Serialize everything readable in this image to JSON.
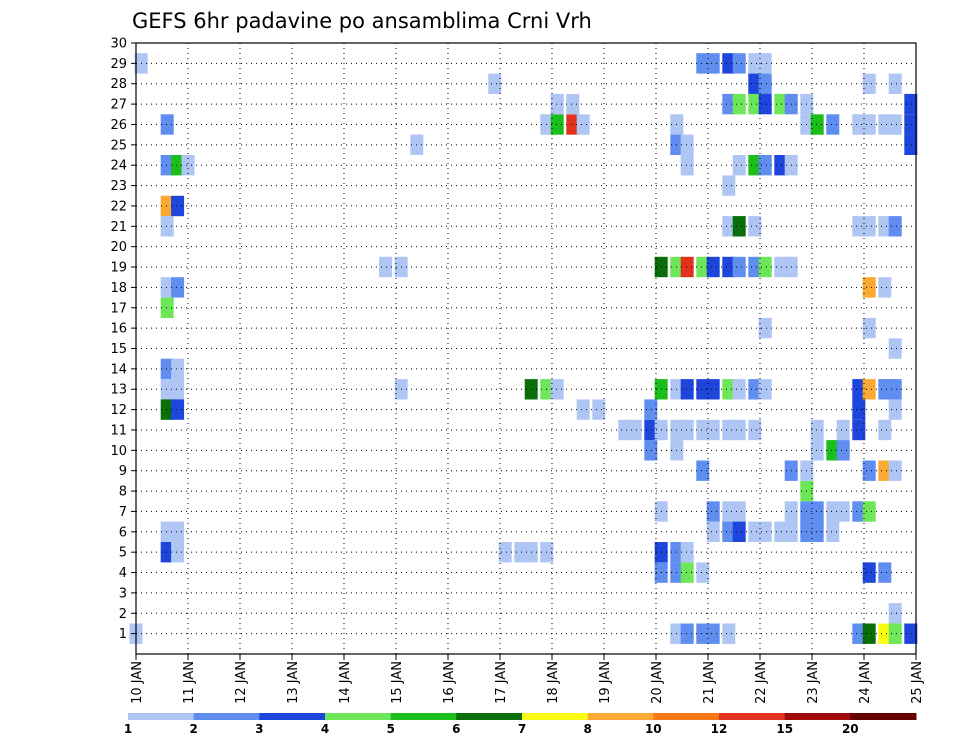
{
  "chart_data": {
    "type": "heatmap",
    "title": "GEFS 6hr padavine po ansamblima Crni Vrh",
    "xlabel": "",
    "ylabel": "",
    "x_range": [
      "10 JAN",
      "25 JAN"
    ],
    "x_ticks": [
      "10 JAN",
      "11 JAN",
      "12 JAN",
      "13 JAN",
      "14 JAN",
      "15 JAN",
      "16 JAN",
      "17 JAN",
      "18 JAN",
      "19 JAN",
      "20 JAN",
      "21 JAN",
      "22 JAN",
      "23 JAN",
      "24 JAN",
      "25 JAN"
    ],
    "y_ticks": [
      "1",
      "2",
      "3",
      "4",
      "5",
      "6",
      "7",
      "8",
      "9",
      "10",
      "11",
      "12",
      "13",
      "14",
      "15",
      "16",
      "17",
      "18",
      "19",
      "20",
      "21",
      "22",
      "23",
      "24",
      "25",
      "26",
      "27",
      "28",
      "29",
      "30"
    ],
    "ylim": [
      0,
      30
    ],
    "grid": true,
    "legend_position": "bottom",
    "legend_levels": [
      "1",
      "2",
      "3",
      "4",
      "5",
      "6",
      "7",
      "8",
      "10",
      "12",
      "15",
      "20"
    ],
    "legend_colors": [
      "#afc6f5",
      "#5f8ef0",
      "#1e46dc",
      "#6ee65a",
      "#1cbe1c",
      "#0a6e0a",
      "#fafa14",
      "#faaa32",
      "#fa7814",
      "#e1321e",
      "#a00a0a",
      "#640000"
    ],
    "cells": [
      [
        10.1,
        29,
        0
      ],
      [
        10.0,
        1,
        0
      ],
      [
        24.9,
        1,
        2
      ],
      [
        24.9,
        25,
        2
      ],
      [
        24.9,
        26,
        2
      ],
      [
        24.9,
        27,
        2
      ],
      [
        10.6,
        26,
        1
      ],
      [
        10.6,
        24,
        1
      ],
      [
        10.8,
        24,
        4
      ],
      [
        11.0,
        24,
        0
      ],
      [
        10.6,
        22,
        7
      ],
      [
        10.8,
        22,
        2
      ],
      [
        10.6,
        21,
        0
      ],
      [
        10.6,
        18,
        0
      ],
      [
        10.8,
        18,
        1
      ],
      [
        10.6,
        17,
        3
      ],
      [
        10.6,
        14,
        1
      ],
      [
        10.8,
        14,
        0
      ],
      [
        10.6,
        13,
        0
      ],
      [
        10.8,
        13,
        0
      ],
      [
        10.6,
        12,
        5
      ],
      [
        10.8,
        12,
        2
      ],
      [
        10.6,
        6,
        0
      ],
      [
        10.8,
        6,
        0
      ],
      [
        10.6,
        5,
        2
      ],
      [
        10.8,
        5,
        0
      ],
      [
        14.8,
        19,
        0
      ],
      [
        15.1,
        19,
        0
      ],
      [
        15.4,
        25,
        0
      ],
      [
        15.1,
        13,
        0
      ],
      [
        16.9,
        28,
        0
      ],
      [
        17.1,
        5,
        0
      ],
      [
        17.4,
        5,
        0
      ],
      [
        17.6,
        5,
        0
      ],
      [
        17.9,
        5,
        0
      ],
      [
        17.6,
        13,
        5
      ],
      [
        17.9,
        13,
        3
      ],
      [
        18.1,
        13,
        0
      ],
      [
        17.9,
        26,
        0
      ],
      [
        18.1,
        26,
        4
      ],
      [
        18.4,
        26,
        9
      ],
      [
        18.6,
        26,
        0
      ],
      [
        18.1,
        27,
        0
      ],
      [
        18.4,
        27,
        0
      ],
      [
        18.6,
        12,
        0
      ],
      [
        18.9,
        12,
        0
      ],
      [
        19.4,
        11,
        0
      ],
      [
        19.6,
        11,
        0
      ],
      [
        19.9,
        11,
        2
      ],
      [
        19.9,
        10,
        1
      ],
      [
        19.9,
        12,
        1
      ],
      [
        20.1,
        19,
        5
      ],
      [
        20.4,
        19,
        3
      ],
      [
        20.6,
        19,
        9
      ],
      [
        20.9,
        19,
        3
      ],
      [
        21.1,
        19,
        2
      ],
      [
        21.4,
        19,
        2
      ],
      [
        21.6,
        19,
        1
      ],
      [
        21.9,
        19,
        1
      ],
      [
        22.1,
        19,
        3
      ],
      [
        22.4,
        19,
        0
      ],
      [
        22.6,
        19,
        0
      ],
      [
        20.1,
        13,
        4
      ],
      [
        20.4,
        13,
        0
      ],
      [
        20.6,
        13,
        2
      ],
      [
        20.9,
        13,
        2
      ],
      [
        21.1,
        13,
        2
      ],
      [
        21.4,
        13,
        3
      ],
      [
        21.6,
        13,
        0
      ],
      [
        21.9,
        13,
        1
      ],
      [
        22.1,
        13,
        0
      ],
      [
        20.1,
        11,
        0
      ],
      [
        20.4,
        11,
        0
      ],
      [
        20.6,
        11,
        0
      ],
      [
        20.9,
        11,
        0
      ],
      [
        21.1,
        11,
        0
      ],
      [
        21.4,
        11,
        0
      ],
      [
        21.6,
        11,
        0
      ],
      [
        21.9,
        11,
        0
      ],
      [
        20.1,
        5,
        2
      ],
      [
        20.4,
        5,
        1
      ],
      [
        20.6,
        5,
        0
      ],
      [
        20.1,
        4,
        1
      ],
      [
        20.4,
        4,
        1
      ],
      [
        20.6,
        4,
        3
      ],
      [
        20.9,
        4,
        0
      ],
      [
        20.1,
        7,
        0
      ],
      [
        20.4,
        10,
        0
      ],
      [
        20.4,
        26,
        0
      ],
      [
        20.4,
        25,
        1
      ],
      [
        20.6,
        25,
        0
      ],
      [
        20.6,
        24,
        0
      ],
      [
        20.4,
        1,
        0
      ],
      [
        20.6,
        1,
        1
      ],
      [
        20.9,
        1,
        1
      ],
      [
        21.1,
        1,
        1
      ],
      [
        21.4,
        1,
        0
      ],
      [
        20.9,
        9,
        1
      ],
      [
        20.9,
        29,
        1
      ],
      [
        21.1,
        29,
        1
      ],
      [
        21.4,
        29,
        2
      ],
      [
        21.6,
        29,
        1
      ],
      [
        21.9,
        29,
        0
      ],
      [
        22.1,
        29,
        0
      ],
      [
        21.9,
        28,
        2
      ],
      [
        22.1,
        28,
        1
      ],
      [
        21.4,
        27,
        1
      ],
      [
        21.6,
        27,
        3
      ],
      [
        21.9,
        27,
        3
      ],
      [
        22.1,
        27,
        2
      ],
      [
        22.4,
        27,
        3
      ],
      [
        22.6,
        27,
        1
      ],
      [
        22.9,
        27,
        0
      ],
      [
        21.6,
        24,
        0
      ],
      [
        21.9,
        24,
        4
      ],
      [
        22.1,
        24,
        1
      ],
      [
        22.4,
        24,
        2
      ],
      [
        22.6,
        24,
        0
      ],
      [
        21.4,
        23,
        0
      ],
      [
        21.4,
        21,
        0
      ],
      [
        21.6,
        21,
        5
      ],
      [
        21.9,
        21,
        0
      ],
      [
        22.1,
        16,
        0
      ],
      [
        21.1,
        7,
        1
      ],
      [
        21.4,
        7,
        0
      ],
      [
        21.6,
        7,
        0
      ],
      [
        21.1,
        6,
        0
      ],
      [
        21.4,
        6,
        1
      ],
      [
        21.6,
        6,
        2
      ],
      [
        21.9,
        6,
        0
      ],
      [
        22.1,
        6,
        0
      ],
      [
        22.4,
        6,
        0
      ],
      [
        22.6,
        6,
        0
      ],
      [
        22.9,
        6,
        1
      ],
      [
        23.1,
        6,
        1
      ],
      [
        23.4,
        6,
        0
      ],
      [
        22.6,
        7,
        0
      ],
      [
        22.9,
        7,
        1
      ],
      [
        23.1,
        7,
        1
      ],
      [
        23.4,
        7,
        0
      ],
      [
        23.6,
        7,
        0
      ],
      [
        23.9,
        7,
        1
      ],
      [
        24.1,
        7,
        3
      ],
      [
        22.9,
        8,
        3
      ],
      [
        22.6,
        9,
        1
      ],
      [
        22.9,
        9,
        0
      ],
      [
        22.9,
        26,
        0
      ],
      [
        23.1,
        26,
        4
      ],
      [
        23.4,
        26,
        1
      ],
      [
        23.9,
        26,
        0
      ],
      [
        24.1,
        26,
        0
      ],
      [
        24.4,
        26,
        0
      ],
      [
        24.6,
        26,
        0
      ],
      [
        23.1,
        11,
        0
      ],
      [
        23.6,
        11,
        0
      ],
      [
        23.9,
        11,
        2
      ],
      [
        23.1,
        10,
        0
      ],
      [
        23.4,
        10,
        4
      ],
      [
        23.6,
        10,
        1
      ],
      [
        23.9,
        12,
        2
      ],
      [
        23.9,
        13,
        2
      ],
      [
        24.1,
        13,
        7
      ],
      [
        24.4,
        13,
        1
      ],
      [
        24.6,
        13,
        1
      ],
      [
        23.9,
        21,
        0
      ],
      [
        24.1,
        21,
        0
      ],
      [
        24.4,
        21,
        0
      ],
      [
        24.6,
        21,
        1
      ],
      [
        24.1,
        18,
        7
      ],
      [
        24.4,
        18,
        0
      ],
      [
        24.1,
        16,
        0
      ],
      [
        24.6,
        15,
        0
      ],
      [
        24.6,
        12,
        0
      ],
      [
        24.4,
        11,
        0
      ],
      [
        24.1,
        9,
        1
      ],
      [
        24.4,
        9,
        7
      ],
      [
        24.6,
        9,
        0
      ],
      [
        24.1,
        4,
        2
      ],
      [
        24.4,
        4,
        1
      ],
      [
        23.9,
        1,
        1
      ],
      [
        24.1,
        1,
        5
      ],
      [
        24.4,
        1,
        6
      ],
      [
        24.6,
        1,
        3
      ],
      [
        24.6,
        2,
        0
      ],
      [
        24.1,
        28,
        0
      ],
      [
        24.6,
        28,
        0
      ]
    ]
  }
}
